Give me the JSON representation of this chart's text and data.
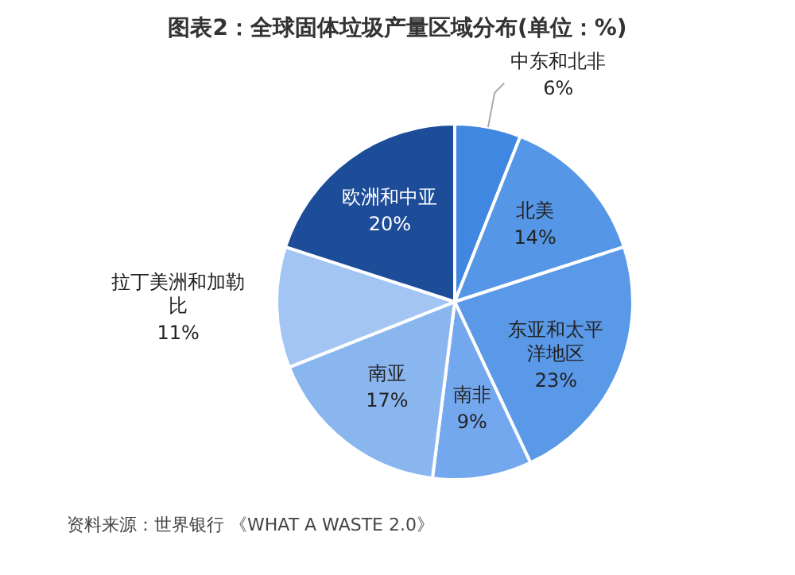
{
  "chart_data": {
    "type": "pie",
    "title": "图表2：全球固体垃圾产量区域分布(单位：%)",
    "categories": [
      "中东和北非",
      "北美",
      "东亚和太平洋地区",
      "南非",
      "南亚",
      "拉丁美洲和加勒比",
      "欧洲和中亚"
    ],
    "values": [
      6,
      14,
      23,
      9,
      17,
      11,
      20
    ],
    "colors": [
      "#3f87e0",
      "#5596e6",
      "#5a98e8",
      "#74a8ee",
      "#8ab6f0",
      "#a3c5f3",
      "#1d4c98"
    ],
    "value_labels": [
      "6%",
      "14%",
      "23%",
      "9%",
      "17%",
      "11%",
      "20%"
    ],
    "annotations": [
      "资料来源：世界银行 《WHAT A WASTE 2.0》"
    ]
  }
}
